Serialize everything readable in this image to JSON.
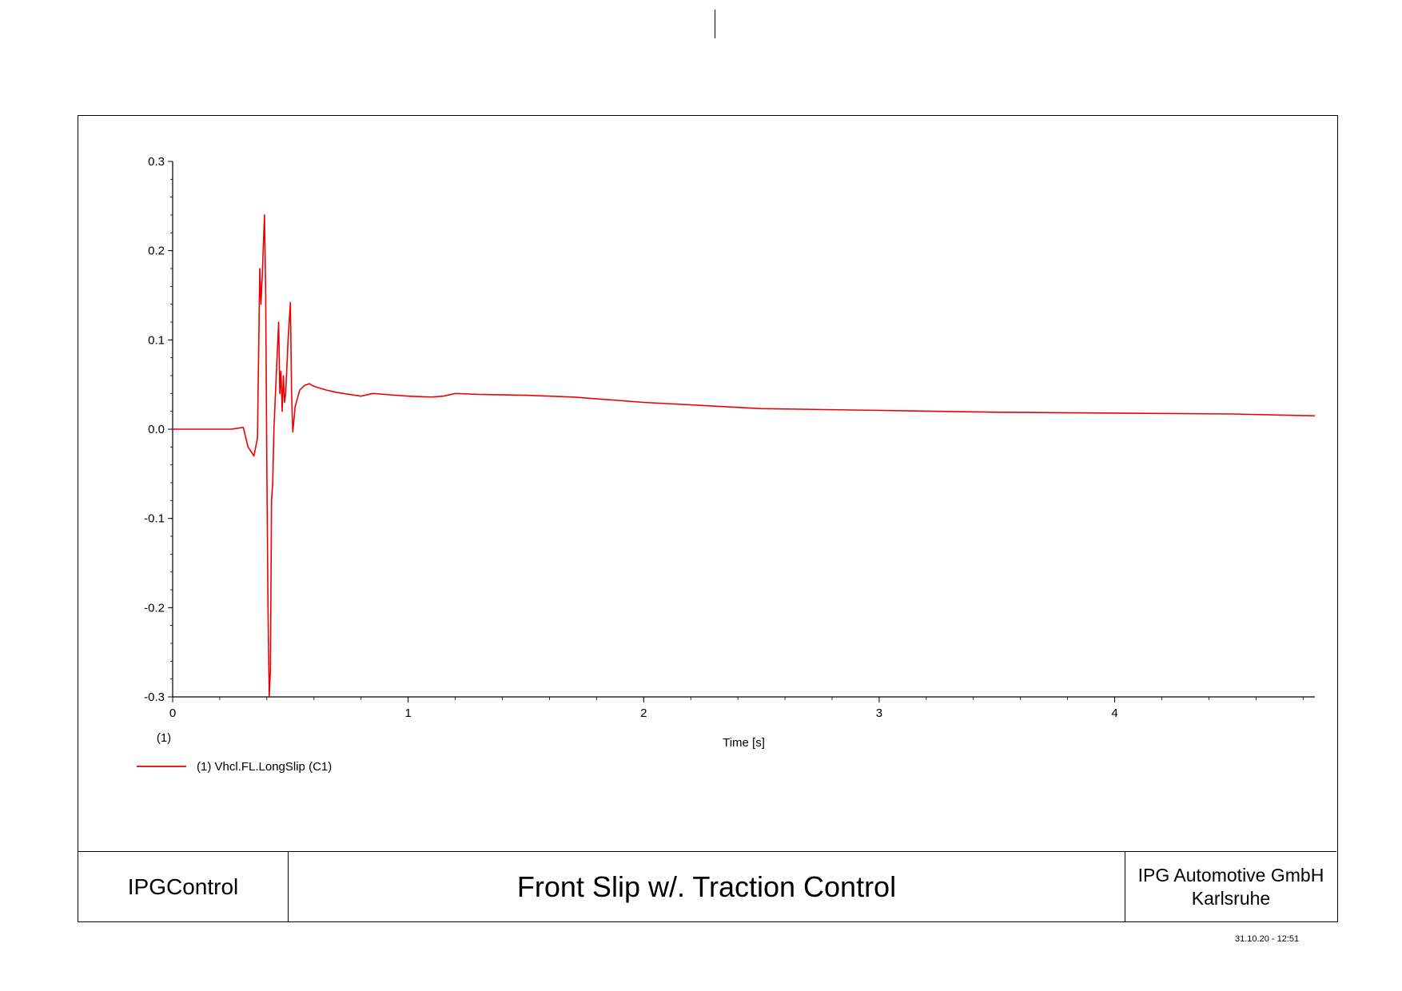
{
  "footer": {
    "app_name": "IPGControl",
    "chart_title": "Front Slip w/. Traction Control",
    "company_line1": "IPG Automotive GmbH",
    "company_line2": "Karlsruhe",
    "timestamp": "31.10.20 - 12:51"
  },
  "colors": {
    "series": "#ee0000",
    "axis": "#000000"
  },
  "chart_data": {
    "type": "line",
    "xlabel": "Time [s]",
    "ylabel": "",
    "xlim": [
      0,
      4.85
    ],
    "ylim": [
      -0.3,
      0.3
    ],
    "xticks": [
      0,
      1,
      2,
      3,
      4
    ],
    "xtick_labels": [
      "0",
      "1",
      "2",
      "3",
      "4"
    ],
    "yticks": [
      -0.3,
      -0.2,
      -0.1,
      0.0,
      0.1,
      0.2,
      0.3
    ],
    "ytick_labels": [
      "-0.3",
      "-0.2",
      "-0.1",
      "0.0",
      "0.1",
      "0.2",
      "0.3"
    ],
    "axis_index_label": "(1)",
    "grid": false,
    "legend_position": "bottom-left",
    "series": [
      {
        "name": "(1) Vhcl.FL.LongSlip (C1)",
        "x": [
          0,
          0.25,
          0.3,
          0.32,
          0.345,
          0.36,
          0.37,
          0.375,
          0.38,
          0.39,
          0.395,
          0.4,
          0.405,
          0.41,
          0.415,
          0.42,
          0.425,
          0.43,
          0.44,
          0.45,
          0.455,
          0.46,
          0.465,
          0.47,
          0.475,
          0.48,
          0.49,
          0.5,
          0.505,
          0.51,
          0.515,
          0.52,
          0.53,
          0.54,
          0.56,
          0.58,
          0.6,
          0.65,
          0.7,
          0.8,
          0.85,
          0.9,
          1.0,
          1.1,
          1.15,
          1.2,
          1.3,
          1.5,
          1.7,
          2.0,
          2.5,
          3.0,
          3.5,
          4.0,
          4.5,
          4.85
        ],
        "y": [
          0.0,
          0.0,
          0.002,
          -0.02,
          -0.03,
          -0.01,
          0.18,
          0.14,
          0.17,
          0.24,
          0.15,
          -0.05,
          -0.2,
          -0.3,
          -0.27,
          -0.08,
          -0.06,
          0.0,
          0.06,
          0.12,
          0.04,
          0.065,
          0.02,
          0.06,
          0.03,
          0.04,
          0.1,
          0.142,
          0.04,
          -0.003,
          0.01,
          0.025,
          0.035,
          0.044,
          0.049,
          0.051,
          0.048,
          0.044,
          0.041,
          0.037,
          0.04,
          0.039,
          0.037,
          0.036,
          0.037,
          0.04,
          0.039,
          0.038,
          0.036,
          0.03,
          0.023,
          0.021,
          0.019,
          0.018,
          0.017,
          0.015
        ]
      }
    ]
  }
}
